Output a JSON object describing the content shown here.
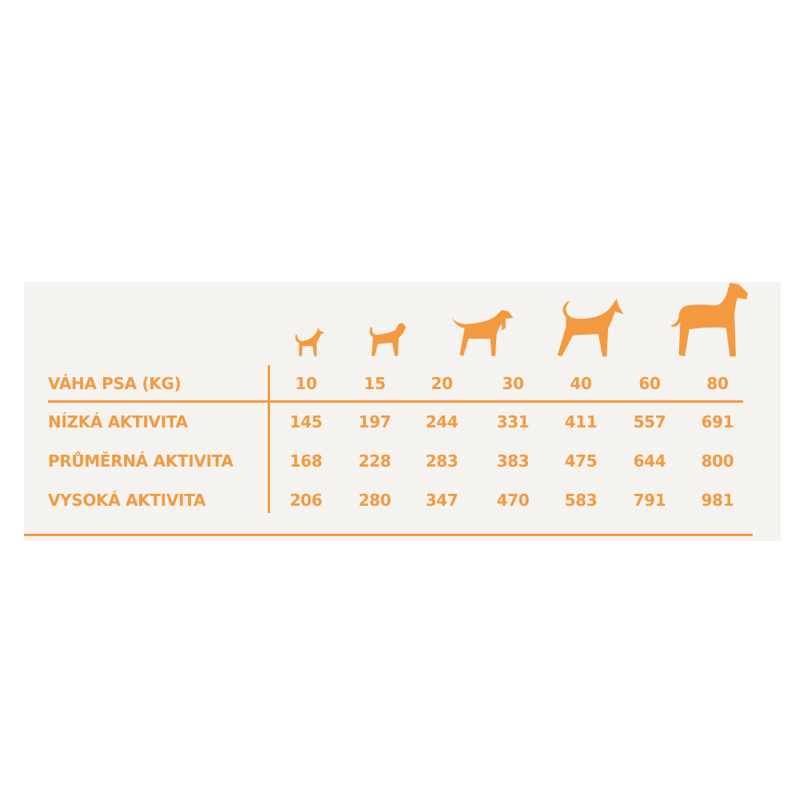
{
  "accent_color": "#f39a40",
  "background_color": "#f5f3ef",
  "dog_icons": [
    "chihuahua-icon",
    "boxer-icon",
    "hound-icon",
    "doberman-icon",
    "great-dane-icon"
  ],
  "table": {
    "header_label": "VÁHA PSA (KG)",
    "weights": [
      "10",
      "15",
      "20",
      "30",
      "40",
      "60",
      "80"
    ],
    "rows": [
      {
        "label": "NÍZKÁ AKTIVITA",
        "values": [
          "145",
          "197",
          "244",
          "331",
          "411",
          "557",
          "691"
        ]
      },
      {
        "label": "PRŮMĚRNÁ AKTIVITA",
        "values": [
          "168",
          "228",
          "283",
          "383",
          "475",
          "644",
          "800"
        ]
      },
      {
        "label": "VYSOKÁ AKTIVITA",
        "values": [
          "206",
          "280",
          "347",
          "470",
          "583",
          "791",
          "981"
        ]
      }
    ]
  }
}
